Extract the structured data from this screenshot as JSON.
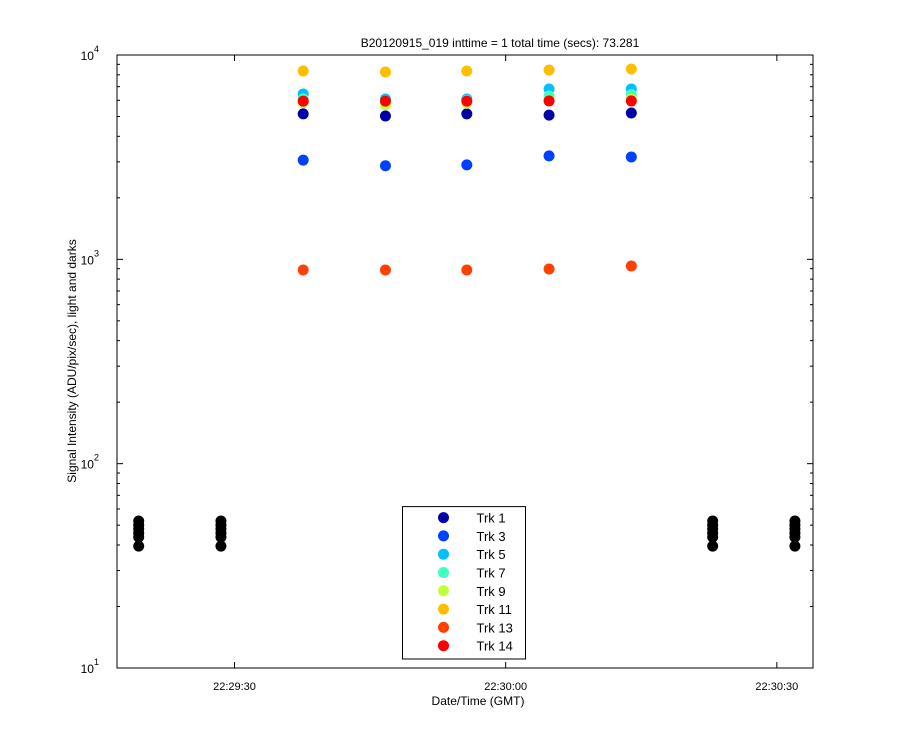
{
  "chart_data": {
    "type": "scatter",
    "title": "B20120915_019 inttime = 1 total time (secs): 73.281",
    "xlabel": "Date/Time (GMT)",
    "ylabel": "Signal Intensity (ADU/pix/sec), light and darks",
    "log_y": true,
    "legend": "lower center",
    "xlim": [
      80957,
      81034
    ],
    "xticks": [
      {
        "value": 80970,
        "label": "22:29:30"
      },
      {
        "value": 81000,
        "label": "22:30:00"
      },
      {
        "value": 81030,
        "label": "22:30:30"
      }
    ],
    "ylim": [
      10,
      10000
    ],
    "yticks": [
      {
        "value": 10,
        "label": "10",
        "exponent": "1"
      },
      {
        "value": 100,
        "label": "10",
        "exponent": "2"
      },
      {
        "value": 1000,
        "label": "10",
        "exponent": "3"
      },
      {
        "value": 10000,
        "label": "10",
        "exponent": "4"
      }
    ],
    "series": [
      {
        "name": "Trk 1",
        "color": "#0000a8",
        "x": [
          80977.6,
          80986.7,
          80995.7,
          81004.8,
          81013.9
        ],
        "values": [
          5150,
          5030,
          5150,
          5080,
          5200
        ]
      },
      {
        "name": "Trk 3",
        "color": "#0040ff",
        "x": [
          80977.6,
          80986.7,
          80995.7,
          81004.8,
          81013.9
        ],
        "values": [
          3060,
          2870,
          2900,
          3210,
          3170
        ]
      },
      {
        "name": "Trk 5",
        "color": "#00c0ff",
        "x": [
          80977.6,
          80986.7,
          80995.7,
          81004.8,
          81013.9
        ],
        "values": [
          6440,
          6090,
          6090,
          6820,
          6820
        ]
      },
      {
        "name": "Trk 7",
        "color": "#40ffbf",
        "x": [
          80977.6,
          80986.7,
          80995.7,
          81004.8,
          81013.9
        ],
        "values": [
          6100,
          5950,
          6000,
          6300,
          6400
        ]
      },
      {
        "name": "Trk 9",
        "color": "#bfff40",
        "x": [
          80977.6,
          80986.7,
          80995.7,
          81004.8,
          81013.9
        ],
        "values": [
          5850,
          5700,
          5800,
          6000,
          6100
        ]
      },
      {
        "name": "Trk 11",
        "color": "#ffbf00",
        "x": [
          80977.6,
          80986.7,
          80995.7,
          81004.8,
          81013.9
        ],
        "values": [
          8350,
          8260,
          8350,
          8440,
          8540
        ]
      },
      {
        "name": "Trk 13",
        "color": "#ff4000",
        "x": [
          80977.6,
          80986.7,
          80995.7,
          81004.8,
          81013.9
        ],
        "values": [
          887,
          887,
          887,
          897,
          928
        ]
      },
      {
        "name": "Trk 14",
        "color": "#ff0000",
        "x": [
          80977.6,
          80986.7,
          80995.7,
          81004.8,
          81013.9
        ],
        "values": [
          5950,
          5950,
          5950,
          5960,
          5960
        ]
      },
      {
        "color": "#000000",
        "x": [
          80959.4,
          80959.4,
          80959.4,
          80959.4,
          80959.4,
          80959.4,
          80968.5,
          80968.5,
          80968.5,
          80968.5,
          80968.5,
          80968.5,
          81022.9,
          81022.9,
          81022.9,
          81022.9,
          81022.9,
          81022.9,
          81032,
          81032,
          81032,
          81032,
          81032,
          81032
        ],
        "values": [
          52.4,
          50,
          47.9,
          45.7,
          43.7,
          39.5,
          52.4,
          50,
          47.9,
          45.7,
          43.7,
          39.5,
          52.4,
          50,
          47.9,
          45.7,
          43.7,
          39.5,
          52.4,
          50,
          47.9,
          45.7,
          43.7,
          39.5
        ]
      }
    ]
  }
}
